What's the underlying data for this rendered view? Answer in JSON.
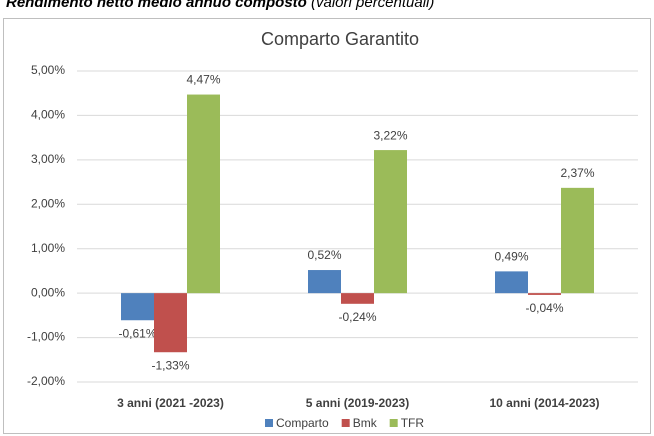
{
  "header": {
    "title": "Rendimento netto medio annuo composto",
    "note": "(valori percentuali)"
  },
  "chart_data": {
    "type": "bar",
    "title": "Comparto Garantito",
    "categories": [
      "3 anni (2021 -2023)",
      "5 anni (2019-2023)",
      "10 anni (2014-2023)"
    ],
    "series": [
      {
        "name": "Comparto",
        "color": "#4f81bd",
        "values": [
          -0.61,
          0.52,
          0.49
        ],
        "value_labels": [
          "-0,61%",
          "0,52%",
          "0,49%"
        ]
      },
      {
        "name": "Bmk",
        "color": "#c0504d",
        "values": [
          -1.33,
          -0.24,
          -0.04
        ],
        "value_labels": [
          "-1,33%",
          "-0,24%",
          "-0,04%"
        ]
      },
      {
        "name": "TFR",
        "color": "#9bbb59",
        "values": [
          4.47,
          3.22,
          2.37
        ],
        "value_labels": [
          "4,47%",
          "3,22%",
          "2,37%"
        ]
      }
    ],
    "ylim": [
      -2,
      5
    ],
    "yticks": [
      {
        "value": -2,
        "label": "-2,00%"
      },
      {
        "value": -1,
        "label": "-1,00%"
      },
      {
        "value": 0,
        "label": "0,00%"
      },
      {
        "value": 1,
        "label": "1,00%"
      },
      {
        "value": 2,
        "label": "2,00%"
      },
      {
        "value": 3,
        "label": "3,00%"
      },
      {
        "value": 4,
        "label": "4,00%"
      },
      {
        "value": 5,
        "label": "5,00%"
      }
    ],
    "grid": true,
    "legend": "bottom"
  }
}
